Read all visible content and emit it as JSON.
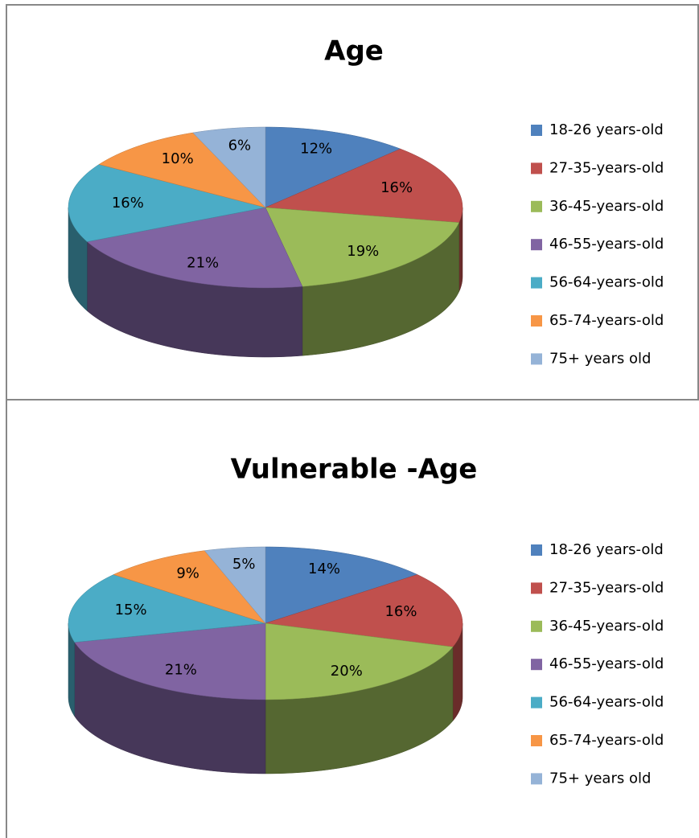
{
  "chart_data": [
    {
      "type": "pie3d",
      "title": "Age",
      "categories": [
        "18-26 years-old",
        "27-35-years-old",
        "36-45-years-old",
        "46-55-years-old",
        "56-64-years-old",
        "65-74-years-old",
        "75+ years old"
      ],
      "values": [
        12,
        16,
        19,
        21,
        16,
        10,
        6
      ],
      "value_labels": [
        "12%",
        "16%",
        "19%",
        "21%",
        "16%",
        "10%",
        "6%"
      ],
      "colors": [
        "#4F81BD",
        "#C0504D",
        "#9BBB59",
        "#8064A2",
        "#4BACC6",
        "#F79646",
        "#95B3D7"
      ],
      "legend": "right"
    },
    {
      "type": "pie3d",
      "title": "Vulnerable -Age",
      "categories": [
        "18-26 years-old",
        "27-35-years-old",
        "36-45-years-old",
        "46-55-years-old",
        "56-64-years-old",
        "65-74-years-old",
        "75+ years old"
      ],
      "values": [
        14,
        16,
        20,
        21,
        15,
        9,
        5
      ],
      "value_labels": [
        "14%",
        "16%",
        "20%",
        "21%",
        "15%",
        "9%",
        "5%"
      ],
      "colors": [
        "#4F81BD",
        "#C0504D",
        "#9BBB59",
        "#8064A2",
        "#4BACC6",
        "#F79646",
        "#95B3D7"
      ],
      "legend": "right"
    }
  ]
}
